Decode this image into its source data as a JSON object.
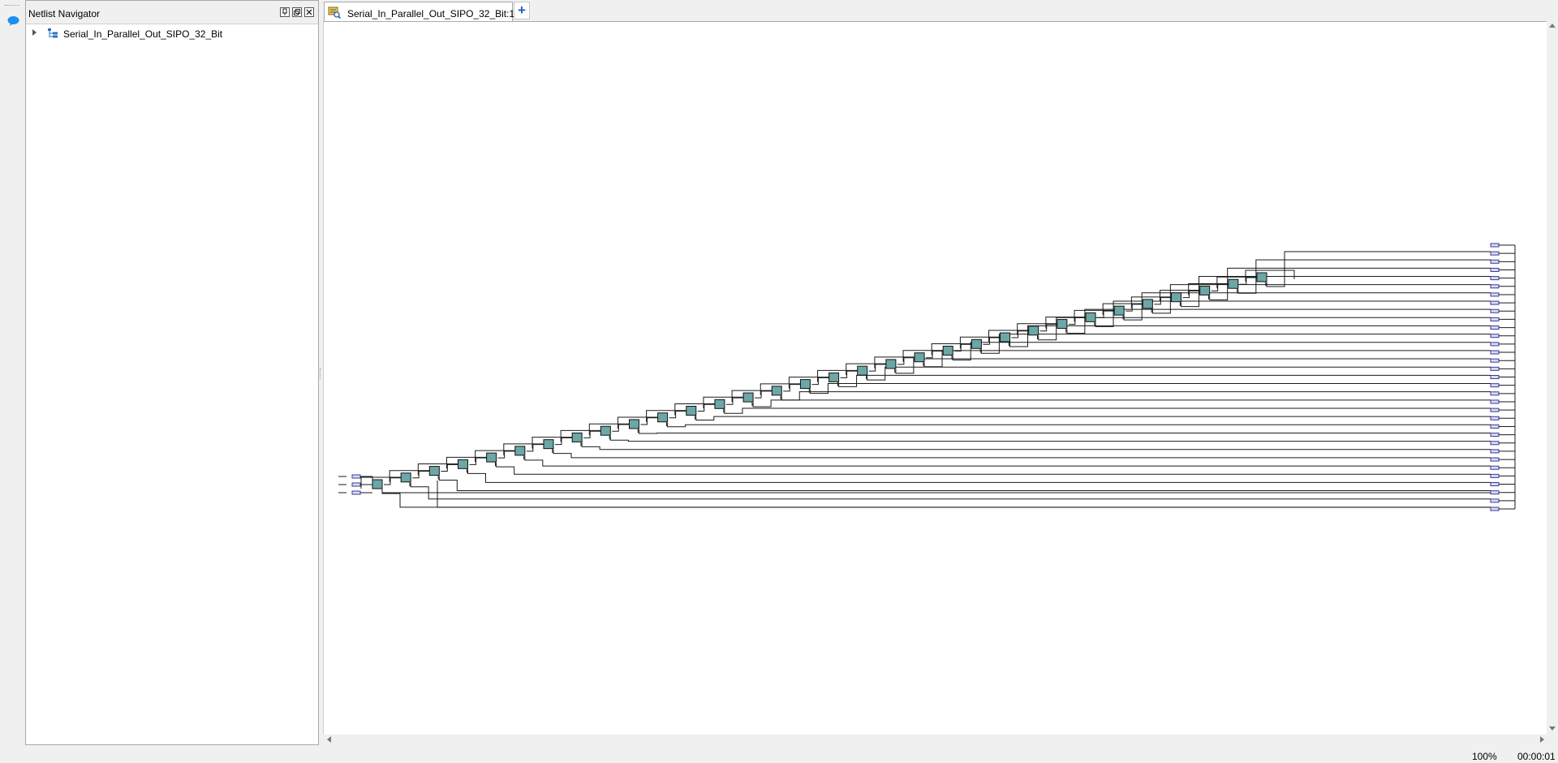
{
  "nav_panel": {
    "title": "Netlist Navigator",
    "tree_root_label": "Serial_In_Parallel_Out_SIPO_32_Bit",
    "header_buttons": [
      "pin",
      "float",
      "close"
    ]
  },
  "editor": {
    "tab_label": "Serial_In_Parallel_Out_SIPO_32_Bit:1",
    "add_tab_symbol": "+"
  },
  "schematic": {
    "design": "Serial_In_Parallel_Out_SIPO_32_Bit",
    "input_port_count": 3,
    "register_count": 32,
    "output_port_count": 33
  },
  "status": {
    "zoom": "100%",
    "elapsed": "00:00:01"
  },
  "colors": {
    "register_fill": "#6ca7a7",
    "port_fill": "#d6dcf4",
    "add_tab_accent": "#1f5fb0"
  },
  "icons": [
    "chat-icon",
    "expand-arrow-icon",
    "hierarchy-tree-icon",
    "netlist-viewer-icon",
    "pin-icon",
    "float-icon",
    "close-icon",
    "add-tab-icon"
  ]
}
